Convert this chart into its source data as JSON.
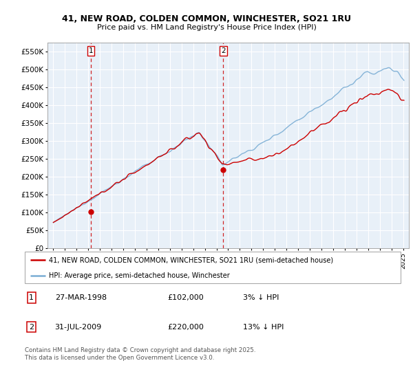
{
  "title": "41, NEW ROAD, COLDEN COMMON, WINCHESTER, SO21 1RU",
  "subtitle": "Price paid vs. HM Land Registry's House Price Index (HPI)",
  "legend_line1": "41, NEW ROAD, COLDEN COMMON, WINCHESTER, SO21 1RU (semi-detached house)",
  "legend_line2": "HPI: Average price, semi-detached house, Winchester",
  "footer": "Contains HM Land Registry data © Crown copyright and database right 2025.\nThis data is licensed under the Open Government Licence v3.0.",
  "sale1_date": "27-MAR-1998",
  "sale1_price": "£102,000",
  "sale1_hpi": "3% ↓ HPI",
  "sale2_date": "31-JUL-2009",
  "sale2_price": "£220,000",
  "sale2_hpi": "13% ↓ HPI",
  "sale1_x": 1998.23,
  "sale1_y": 102000,
  "sale2_x": 2009.58,
  "sale2_y": 220000,
  "vline1_x": 1998.23,
  "vline2_x": 2009.58,
  "hpi_color": "#7aadd4",
  "price_color": "#cc0000",
  "vline_color": "#cc0000",
  "background_color": "#e8f0f8",
  "grid_color": "#ffffff",
  "ylim": [
    0,
    575000
  ],
  "xlim": [
    1994.5,
    2025.5
  ],
  "yticks": [
    0,
    50000,
    100000,
    150000,
    200000,
    250000,
    300000,
    350000,
    400000,
    450000,
    500000,
    550000
  ],
  "ytick_labels": [
    "£0",
    "£50K",
    "£100K",
    "£150K",
    "£200K",
    "£250K",
    "£300K",
    "£350K",
    "£400K",
    "£450K",
    "£500K",
    "£550K"
  ],
  "xtick_years": [
    1995,
    1996,
    1997,
    1998,
    1999,
    2000,
    2001,
    2002,
    2003,
    2004,
    2005,
    2006,
    2007,
    2008,
    2009,
    2010,
    2011,
    2012,
    2013,
    2014,
    2015,
    2016,
    2017,
    2018,
    2019,
    2020,
    2021,
    2022,
    2023,
    2024,
    2025
  ]
}
